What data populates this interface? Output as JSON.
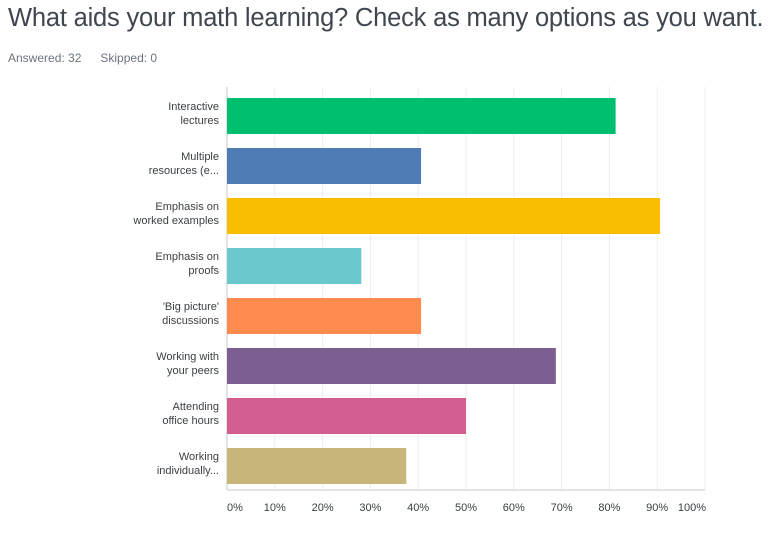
{
  "header": {
    "title": "What aids your math learning? Check as many options as you want.",
    "answered": "Answered: 32",
    "skipped": "Skipped: 0"
  },
  "chart_data": {
    "type": "bar",
    "orientation": "horizontal",
    "title": "",
    "xlabel": "",
    "ylabel": "",
    "xlim": [
      0,
      100
    ],
    "grid": true,
    "legend": "none",
    "categories": [
      [
        "Interactive",
        "lectures"
      ],
      [
        "Multiple",
        "resources (e..."
      ],
      [
        "Emphasis on",
        "worked examples"
      ],
      [
        "Emphasis on",
        "proofs"
      ],
      [
        "'Big picture'",
        "discussions"
      ],
      [
        "Working with",
        "your peers"
      ],
      [
        "Attending",
        "office hours"
      ],
      [
        "Working",
        "individually..."
      ]
    ],
    "values": [
      81.3,
      40.6,
      90.6,
      28.1,
      40.6,
      68.8,
      50.0,
      37.5
    ],
    "colors": [
      "#00bf6f",
      "#507cb6",
      "#f9be00",
      "#6bc8cd",
      "#ff8b4f",
      "#7d5e90",
      "#d25f90",
      "#c8b579"
    ],
    "xticks": [
      "0%",
      "10%",
      "20%",
      "30%",
      "40%",
      "50%",
      "60%",
      "70%",
      "80%",
      "90%",
      "100%"
    ]
  }
}
